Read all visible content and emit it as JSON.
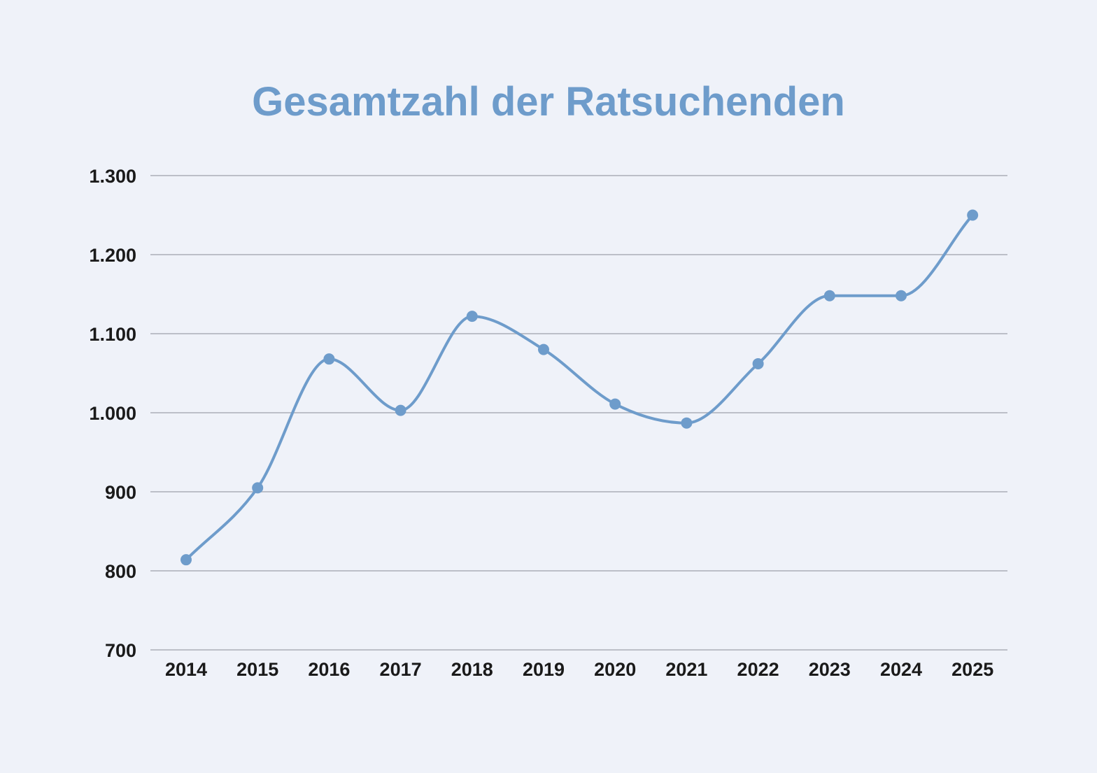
{
  "chart_data": {
    "type": "line",
    "title": "Gesamtzahl der Ratsuchenden",
    "xlabel": "",
    "ylabel": "",
    "x": [
      "2014",
      "2015",
      "2016",
      "2017",
      "2018",
      "2019",
      "2020",
      "2021",
      "2022",
      "2023",
      "2024",
      "2025"
    ],
    "series": [
      {
        "values": [
          814,
          905,
          1068,
          1003,
          1122,
          1080,
          1011,
          987,
          1062,
          1148,
          1148,
          1250
        ]
      }
    ],
    "ylim": [
      700,
      1300
    ],
    "yticks": [
      700,
      800,
      900,
      1000,
      1100,
      1200,
      1300
    ],
    "ytick_labels": [
      "700",
      "800",
      "900",
      "1.000",
      "1.100",
      "1.200",
      "1.300"
    ],
    "grid": true,
    "smooth": true,
    "markers": true,
    "legend": "none",
    "colors": {
      "line": "#6e9ccb",
      "title": "#6e9ccb",
      "background": "#eff2f9"
    }
  }
}
